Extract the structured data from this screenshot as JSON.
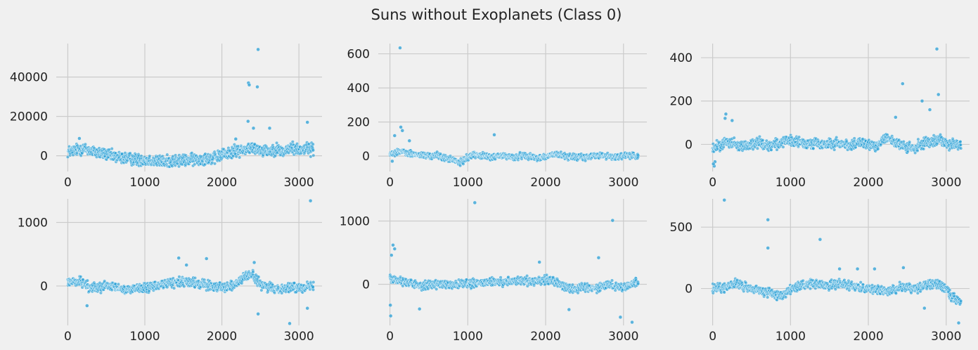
{
  "figure": {
    "title": "Suns without Exoplanets (Class 0)",
    "background": "#f0f0f0",
    "panel_background": "#f0f0f0",
    "grid_color": "#cbcbcb",
    "marker_color": "#2a9fd6",
    "marker_edge": "#ffffff"
  },
  "chart_data": [
    {
      "type": "scatter",
      "grid": true,
      "xlim": [
        -150,
        3300
      ],
      "ylim": [
        -8000,
        57000
      ],
      "xticks": [
        0,
        1000,
        2000,
        3000
      ],
      "xtick_labels": [
        "0",
        "1000",
        "2000",
        "3000"
      ],
      "yticks": [
        0,
        20000,
        40000
      ],
      "ytick_labels": [
        "0",
        "20000",
        "40000"
      ],
      "series": [
        {
          "x": [
            0,
            100,
            200,
            300,
            400,
            500,
            600,
            700,
            800,
            900,
            1000,
            1100,
            1200,
            1300,
            1400,
            1500,
            1600,
            1700,
            1800,
            1900,
            2000,
            2100,
            2200,
            2300,
            2400,
            2500,
            2600,
            2700,
            2800,
            2900,
            3000,
            3100,
            3190
          ],
          "y": [
            2000,
            3000,
            3500,
            2500,
            1500,
            800,
            -500,
            -1000,
            -1500,
            -2000,
            -2000,
            -2500,
            -3000,
            -2800,
            -2500,
            -2500,
            -2000,
            -1800,
            -1200,
            -1500,
            500,
            1500,
            2500,
            3500,
            4000,
            3000,
            2500,
            3500,
            2000,
            4000,
            3000,
            4000,
            3000
          ],
          "spread": 2500
        }
      ],
      "outliers": [
        {
          "x": 2345,
          "y": 37000
        },
        {
          "x": 2355,
          "y": 36000
        },
        {
          "x": 2460,
          "y": 35000
        },
        {
          "x": 2470,
          "y": 54000
        },
        {
          "x": 2340,
          "y": 17500
        },
        {
          "x": 3110,
          "y": 17000
        },
        {
          "x": 2620,
          "y": 14000
        },
        {
          "x": 2410,
          "y": 14000
        },
        {
          "x": 2180,
          "y": 8500
        },
        {
          "x": 150,
          "y": 8800
        }
      ]
    },
    {
      "type": "scatter",
      "grid": true,
      "xlim": [
        -150,
        3300
      ],
      "ylim": [
        -90,
        660
      ],
      "xticks": [
        0,
        1000,
        2000,
        3000
      ],
      "xtick_labels": [
        "0",
        "1000",
        "2000",
        "3000"
      ],
      "yticks": [
        0,
        200,
        400,
        600
      ],
      "ytick_labels": [
        "0",
        "200",
        "400",
        "600"
      ],
      "series": [
        {
          "x": [
            0,
            100,
            200,
            300,
            400,
            500,
            600,
            700,
            800,
            900,
            1000,
            1100,
            1200,
            1300,
            1400,
            1500,
            1600,
            1700,
            1800,
            1900,
            2000,
            2100,
            2200,
            2300,
            2400,
            2500,
            2600,
            2700,
            2800,
            2900,
            3000,
            3100,
            3190
          ],
          "y": [
            10,
            30,
            20,
            10,
            5,
            0,
            5,
            -10,
            -20,
            -40,
            -5,
            10,
            0,
            -5,
            0,
            0,
            -10,
            5,
            0,
            -10,
            -5,
            10,
            5,
            -5,
            -5,
            -10,
            0,
            5,
            0,
            -5,
            0,
            5,
            0
          ],
          "spread": 15
        }
      ],
      "outliers": [
        {
          "x": 130,
          "y": 635
        },
        {
          "x": 140,
          "y": 170
        },
        {
          "x": 160,
          "y": 150
        },
        {
          "x": 60,
          "y": 120
        },
        {
          "x": 1340,
          "y": 125
        },
        {
          "x": 250,
          "y": 90
        },
        {
          "x": 30,
          "y": -30
        }
      ]
    },
    {
      "type": "scatter",
      "grid": true,
      "xlim": [
        -150,
        3300
      ],
      "ylim": [
        -125,
        465
      ],
      "xticks": [
        0,
        1000,
        2000,
        3000
      ],
      "xtick_labels": [
        "0",
        "1000",
        "2000",
        "3000"
      ],
      "yticks": [
        0,
        200,
        400
      ],
      "ytick_labels": [
        "0",
        "200",
        "400"
      ],
      "series": [
        {
          "x": [
            0,
            100,
            200,
            300,
            400,
            500,
            600,
            700,
            800,
            900,
            1000,
            1100,
            1200,
            1300,
            1400,
            1500,
            1600,
            1700,
            1800,
            1900,
            2000,
            2100,
            2200,
            2300,
            2400,
            2500,
            2600,
            2700,
            2800,
            2900,
            3000,
            3100,
            3190
          ],
          "y": [
            -20,
            0,
            15,
            0,
            -10,
            0,
            10,
            -5,
            0,
            10,
            15,
            10,
            0,
            10,
            -5,
            0,
            5,
            0,
            -5,
            10,
            -5,
            -10,
            35,
            20,
            -5,
            -15,
            -20,
            5,
            15,
            25,
            5,
            0,
            -10
          ],
          "spread": 20
        }
      ],
      "outliers": [
        {
          "x": 2880,
          "y": 440
        },
        {
          "x": 2440,
          "y": 280
        },
        {
          "x": 2900,
          "y": 230
        },
        {
          "x": 2690,
          "y": 200
        },
        {
          "x": 2790,
          "y": 160
        },
        {
          "x": 170,
          "y": 140
        },
        {
          "x": 160,
          "y": 120
        },
        {
          "x": 250,
          "y": 110
        },
        {
          "x": 20,
          "y": -100
        },
        {
          "x": 30,
          "y": -80
        },
        {
          "x": 10,
          "y": -90
        },
        {
          "x": 2350,
          "y": 125
        }
      ]
    },
    {
      "type": "scatter",
      "grid": true,
      "xlim": [
        -150,
        3300
      ],
      "ylim": [
        -620,
        1370
      ],
      "xticks": [
        0,
        1000,
        2000,
        3000
      ],
      "xtick_labels": [
        "0",
        "1000",
        "2000",
        "3000"
      ],
      "yticks": [
        0,
        1000
      ],
      "ytick_labels": [
        "0",
        "1000"
      ],
      "series": [
        {
          "x": [
            0,
            100,
            200,
            300,
            400,
            500,
            600,
            700,
            800,
            900,
            1000,
            1100,
            1200,
            1300,
            1400,
            1500,
            1600,
            1700,
            1800,
            1900,
            2000,
            2100,
            2200,
            2300,
            2400,
            2500,
            2600,
            2700,
            2800,
            2900,
            3000,
            3100,
            3190
          ],
          "y": [
            60,
            80,
            50,
            -20,
            -30,
            0,
            -20,
            -50,
            -60,
            -20,
            -40,
            -10,
            20,
            40,
            60,
            80,
            50,
            30,
            20,
            0,
            -20,
            -10,
            60,
            150,
            180,
            20,
            -20,
            -50,
            -30,
            -30,
            -20,
            -10,
            0
          ],
          "spread": 60
        }
      ],
      "outliers": [
        {
          "x": 3150,
          "y": 1340
        },
        {
          "x": 1440,
          "y": 440
        },
        {
          "x": 1800,
          "y": 430
        },
        {
          "x": 1540,
          "y": 330
        },
        {
          "x": 2880,
          "y": -590
        },
        {
          "x": 2470,
          "y": -440
        },
        {
          "x": 3110,
          "y": -350
        },
        {
          "x": 2420,
          "y": 370
        },
        {
          "x": 250,
          "y": -310
        }
      ]
    },
    {
      "type": "scatter",
      "grid": true,
      "xlim": [
        -150,
        3300
      ],
      "ylim": [
        -650,
        1350
      ],
      "xticks": [
        0,
        1000,
        2000,
        3000
      ],
      "xtick_labels": [
        "0",
        "1000",
        "2000",
        "3000"
      ],
      "yticks": [
        0,
        1000
      ],
      "ytick_labels": [
        "0",
        "1000"
      ],
      "series": [
        {
          "x": [
            0,
            100,
            200,
            300,
            400,
            500,
            600,
            700,
            800,
            900,
            1000,
            1100,
            1200,
            1300,
            1400,
            1500,
            1600,
            1700,
            1800,
            1900,
            2000,
            2100,
            2200,
            2300,
            2400,
            2500,
            2600,
            2700,
            2800,
            2900,
            3000,
            3100,
            3190
          ],
          "y": [
            100,
            80,
            40,
            0,
            -20,
            0,
            0,
            -10,
            -20,
            0,
            0,
            10,
            20,
            30,
            30,
            40,
            50,
            50,
            50,
            60,
            70,
            60,
            0,
            -50,
            -80,
            -30,
            -60,
            -40,
            0,
            -20,
            -50,
            0,
            50
          ],
          "spread": 55
        }
      ],
      "outliers": [
        {
          "x": 1090,
          "y": 1290
        },
        {
          "x": 2860,
          "y": 1010
        },
        {
          "x": 40,
          "y": 620
        },
        {
          "x": 60,
          "y": 560
        },
        {
          "x": 20,
          "y": 460
        },
        {
          "x": 10,
          "y": -500
        },
        {
          "x": 5,
          "y": -330
        },
        {
          "x": 2680,
          "y": 420
        },
        {
          "x": 1920,
          "y": 350
        },
        {
          "x": 2300,
          "y": -400
        },
        {
          "x": 3110,
          "y": -600
        },
        {
          "x": 2960,
          "y": -520
        },
        {
          "x": 380,
          "y": -390
        }
      ]
    },
    {
      "type": "scatter",
      "grid": true,
      "xlim": [
        -150,
        3300
      ],
      "ylim": [
        -300,
        730
      ],
      "xticks": [
        0,
        1000,
        2000,
        3000
      ],
      "xtick_labels": [
        "0",
        "1000",
        "2000",
        "3000"
      ],
      "yticks": [
        0,
        500
      ],
      "ytick_labels": [
        "0",
        "500"
      ],
      "series": [
        {
          "x": [
            0,
            100,
            200,
            300,
            400,
            500,
            600,
            700,
            800,
            900,
            1000,
            1100,
            1200,
            1300,
            1400,
            1500,
            1600,
            1700,
            1800,
            1900,
            2000,
            2100,
            2200,
            2300,
            2400,
            2500,
            2600,
            2700,
            2800,
            2900,
            3000,
            3050,
            3100,
            3150,
            3190
          ],
          "y": [
            0,
            0,
            20,
            40,
            10,
            0,
            -20,
            -30,
            -50,
            -60,
            0,
            20,
            30,
            40,
            30,
            20,
            40,
            40,
            20,
            10,
            0,
            -10,
            -20,
            -20,
            10,
            10,
            0,
            20,
            40,
            30,
            0,
            -60,
            -80,
            -100,
            -120
          ],
          "spread": 30
        }
      ],
      "outliers": [
        {
          "x": 150,
          "y": 720
        },
        {
          "x": 710,
          "y": 560
        },
        {
          "x": 710,
          "y": 330
        },
        {
          "x": 1380,
          "y": 400
        },
        {
          "x": 1630,
          "y": 160
        },
        {
          "x": 1860,
          "y": 160
        },
        {
          "x": 2080,
          "y": 160
        },
        {
          "x": 2450,
          "y": 170
        },
        {
          "x": 2720,
          "y": -160
        },
        {
          "x": 3160,
          "y": -280
        }
      ]
    }
  ]
}
